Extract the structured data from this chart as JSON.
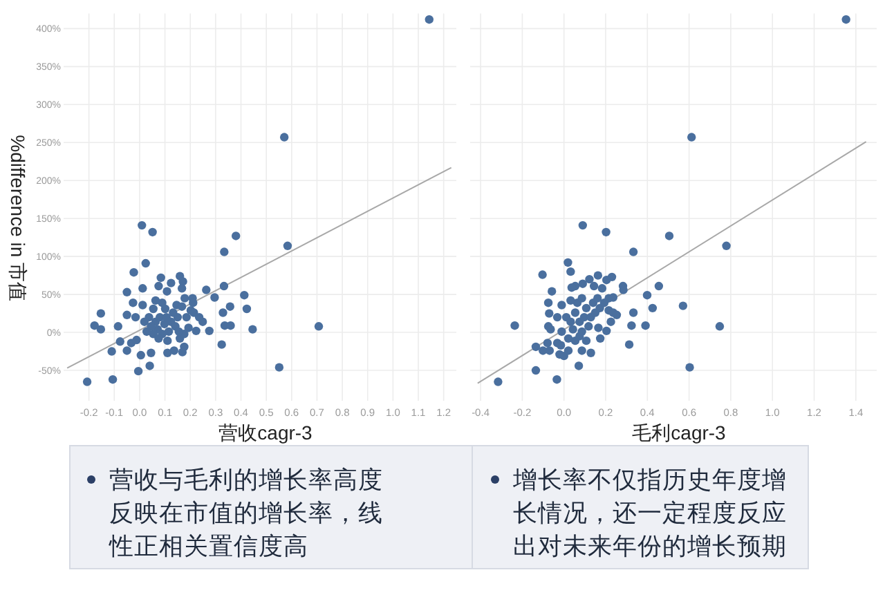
{
  "chart_data": [
    {
      "type": "scatter",
      "xlabel": "营收cagr-3",
      "ylabel": "%difference in 市值",
      "xlim": [
        -0.3,
        1.25
      ],
      "ylim": [
        -90,
        420
      ],
      "grid": true,
      "tick_labels": true,
      "xticks": [
        {
          "value": -0.2,
          "label": "-0.2"
        },
        {
          "value": -0.1,
          "label": "-0.1"
        },
        {
          "value": 0,
          "label": "0.0"
        },
        {
          "value": 0.1,
          "label": "0.1"
        },
        {
          "value": 0.2,
          "label": "0.2"
        },
        {
          "value": 0.3,
          "label": "0.3"
        },
        {
          "value": 0.4,
          "label": "0.4"
        },
        {
          "value": 0.5,
          "label": "0.5"
        },
        {
          "value": 0.6,
          "label": "0.6"
        },
        {
          "value": 0.7,
          "label": "0.7"
        },
        {
          "value": 0.8,
          "label": "0.8"
        },
        {
          "value": 0.9,
          "label": "0.9"
        },
        {
          "value": 1,
          "label": "1.0"
        },
        {
          "value": 1.1,
          "label": "1.1"
        },
        {
          "value": 1.2,
          "label": "1.2"
        }
      ],
      "yticks": [
        {
          "value": -50,
          "label": "-50%"
        },
        {
          "value": 0,
          "label": "0%"
        },
        {
          "value": 50,
          "label": "50%"
        },
        {
          "value": 100,
          "label": "100%"
        },
        {
          "value": 150,
          "label": "150%"
        },
        {
          "value": 200,
          "label": "200%"
        },
        {
          "value": 250,
          "label": "250%"
        },
        {
          "value": 300,
          "label": "300%"
        },
        {
          "value": 350,
          "label": "350%"
        },
        {
          "value": 400,
          "label": "400%"
        }
      ],
      "series": [
        {
          "type": "line",
          "color": "#a8a8a8",
          "x": [
            -0.286,
            1.23
          ],
          "values": [
            -47,
            217
          ]
        },
        {
          "type": "scatter",
          "color": "#4a6f9e",
          "marker": "circle",
          "x": [
            1.143,
            0.571,
            0.584,
            0.009,
            0.051,
            0.38,
            0.334,
            0.024,
            0.707,
            0.551,
            -0.207,
            -0.106,
            -0.005,
            0.04,
            -0.023,
            0.012,
            -0.05,
            0.084,
            0.075,
            0.124,
            0.108,
            0.159,
            0.171,
            0.167,
            0.263,
            0.333,
            0.413,
            0.296,
            0.209,
            0.178,
            0.423,
            0.357,
            0.329,
            0.446,
            0.336,
            0.359,
            0.275,
            0.223,
            0.324,
            -0.153,
            -0.178,
            -0.153,
            -0.085,
            -0.05,
            -0.026,
            0.012,
            -0.016,
            -0.077,
            -0.11,
            -0.05,
            -0.033,
            -0.012,
            0.005,
            0.045,
            0.11,
            0.11,
            0.176,
            0.169,
            0.159,
            0.136,
            0.037,
            0.054,
            0.063,
            0.071,
            0.08,
            0.089,
            0.098,
            0.106,
            0.115,
            0.124,
            0.132,
            0.141,
            0.15,
            0.054,
            0.075,
            0.045,
            0.019,
            0.028,
            0.089,
            0.063,
            0.101,
            0.146,
            0.167,
            0.185,
            0.202,
            0.214,
            0.235,
            0.249,
            0.193,
            0.176,
            0.155,
            0.211
          ],
          "values": [
            412,
            257,
            114,
            141,
            132,
            127,
            106,
            91,
            8,
            -46,
            -65,
            -62,
            -51,
            -44,
            79,
            58,
            53,
            72,
            61,
            65,
            54,
            74,
            67,
            58,
            56,
            61,
            49,
            46,
            45,
            45,
            31,
            34,
            26,
            4,
            9,
            9,
            2,
            2,
            -16,
            25,
            9,
            4,
            8,
            23,
            39,
            36,
            20,
            -12,
            -25,
            -24,
            -14,
            -10,
            -30,
            -27,
            -27,
            -11,
            -19,
            -26,
            -8,
            -24,
            20,
            31,
            14,
            4,
            20,
            -2,
            11,
            20,
            1,
            14,
            26,
            8,
            20,
            -2,
            -8,
            8,
            14,
            1,
            39,
            42,
            31,
            36,
            34,
            20,
            29,
            26,
            20,
            14,
            6,
            -2,
            1,
            39
          ]
        }
      ]
    },
    {
      "type": "scatter",
      "xlabel": "毛利cagr-3",
      "xlim": [
        -0.45,
        1.5
      ],
      "ylim": [
        -90,
        420
      ],
      "grid": true,
      "tick_labels": "x",
      "xticks": [
        {
          "value": -0.4,
          "label": "-0.4"
        },
        {
          "value": -0.2,
          "label": "-0.2"
        },
        {
          "value": 0,
          "label": "0.0"
        },
        {
          "value": 0.2,
          "label": "0.2"
        },
        {
          "value": 0.4,
          "label": "0.4"
        },
        {
          "value": 0.6,
          "label": "0.6"
        },
        {
          "value": 0.8,
          "label": "0.8"
        },
        {
          "value": 1,
          "label": "1.0"
        },
        {
          "value": 1.2,
          "label": "1.2"
        },
        {
          "value": 1.4,
          "label": "1.4"
        }
      ],
      "yticks": [
        {
          "value": -50,
          "label": null
        },
        {
          "value": 0,
          "label": null
        },
        {
          "value": 50,
          "label": null
        },
        {
          "value": 100,
          "label": null
        },
        {
          "value": 150,
          "label": null
        },
        {
          "value": 200,
          "label": null
        },
        {
          "value": 250,
          "label": null
        },
        {
          "value": 300,
          "label": null
        },
        {
          "value": 350,
          "label": null
        },
        {
          "value": 400,
          "label": null
        }
      ],
      "series": [
        {
          "type": "line",
          "color": "#a8a8a8",
          "x": [
            -0.414,
            1.449
          ],
          "values": [
            -67,
            251
          ]
        },
        {
          "type": "scatter",
          "color": "#4a6f9e",
          "marker": "circle",
          "x": [
            1.353,
            0.612,
            0.09,
            0.202,
            0.505,
            0.779,
            0.333,
            0.019,
            0.032,
            -0.103,
            -0.058,
            -0.236,
            -0.135,
            -0.316,
            -0.135,
            -0.034,
            0.071,
            0.603,
            0.747,
            0.571,
            0.455,
            0.399,
            0.425,
            0.391,
            0.333,
            0.324,
            0.313,
            0.283,
            0.285,
            0.23,
            0.204,
            0.163,
            0.122,
            0.09,
            0.054,
            0.037,
            0.144,
            0.183,
            -0.075,
            -0.071,
            -0.075,
            -0.064,
            -0.079,
            -0.101,
            -0.069,
            -0.032,
            -0.021,
            0,
            -0.015,
            0.021,
            0.086,
            0.129,
            0.174,
            0.165,
            0.204,
            0.225,
            0.215,
            0.236,
            0.253,
            0.215,
            0.236,
            0.011,
            0.032,
            0.054,
            0.064,
            0.075,
            0.086,
            0.097,
            0.107,
            0.118,
            0.129,
            0.14,
            0.15,
            0.161,
            0.172,
            -0.011,
            0.021,
            0.054,
            0.043,
            0.075,
            0.107,
            -0.032,
            -0.011,
            0.032,
            0.086,
            0.193
          ],
          "values": [
            412,
            257,
            141,
            132,
            127,
            114,
            106,
            92,
            80,
            76,
            54,
            9,
            -19,
            -65,
            -50,
            -62,
            -44,
            -46,
            8,
            35,
            61,
            49,
            32,
            9,
            26,
            9,
            -16,
            61,
            56,
            73,
            69,
            75,
            70,
            64,
            61,
            59,
            61,
            58,
            39,
            25,
            8,
            4,
            -14,
            -24,
            -24,
            -14,
            -29,
            -31,
            -17,
            -24,
            -24,
            -27,
            -8,
            6,
            2,
            14,
            29,
            26,
            23,
            45,
            46,
            20,
            14,
            26,
            39,
            14,
            1,
            20,
            32,
            8,
            20,
            39,
            26,
            45,
            32,
            1,
            -8,
            -11,
            4,
            -5,
            -11,
            20,
            36,
            42,
            45,
            39
          ]
        }
      ]
    },
    {
      "type": "other",
      "annotations": [
        "营收与毛利的增长率高度反映在市值的增长率，线性正相关置信度高",
        "增长率不仅指历史年度增长情况，还一定程度反应出对未来年份的增长预期"
      ]
    }
  ]
}
